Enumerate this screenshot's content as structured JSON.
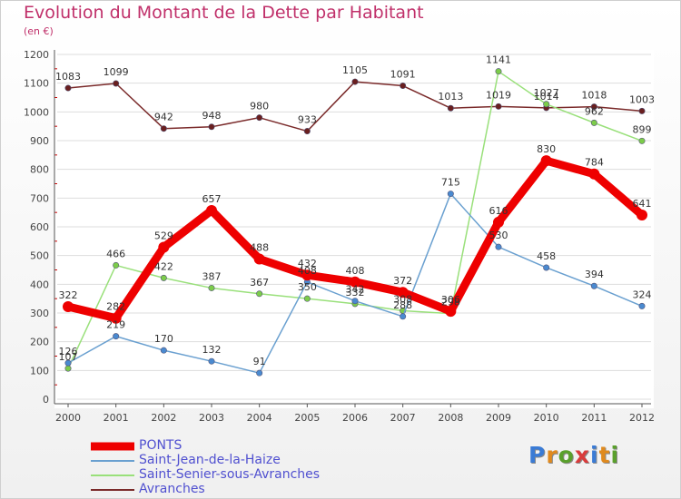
{
  "title": "Evolution du Montant de la Dette par Habitant",
  "subtitle": "(en €)",
  "colors": {
    "title": "#c0306a",
    "axis": "#555555",
    "grid": "#dddddd",
    "legend_text": "#5050d0"
  },
  "logo": {
    "text": "Proxiti",
    "letters": [
      "P",
      "r",
      "o",
      "x",
      "i",
      "t",
      "i"
    ],
    "colors": [
      "#3a7bd5",
      "#e08a1e",
      "#5aa02c",
      "#d93b3b",
      "#3a7bd5",
      "#e08a1e",
      "#5aa02c"
    ]
  },
  "chart_data": {
    "type": "line",
    "title": "Evolution du Montant de la Dette par Habitant",
    "subtitle": "(en €)",
    "xlabel": "",
    "ylabel": "",
    "x": [
      "2000",
      "2001",
      "2002",
      "2003",
      "2004",
      "2005",
      "2006",
      "2007",
      "2008",
      "2009",
      "2010",
      "2011",
      "2012"
    ],
    "ylim": [
      0,
      1200
    ],
    "yticks": [
      0,
      100,
      200,
      300,
      400,
      500,
      600,
      700,
      800,
      900,
      1000,
      1100,
      1200
    ],
    "grid": true,
    "legend_position": "bottom-left",
    "series": [
      {
        "name": "PONTS",
        "color": "#ee0000",
        "marker": "#ee0000",
        "values": [
          322,
          282,
          529,
          657,
          488,
          432,
          408,
          372,
          306,
          616,
          830,
          784,
          641
        ],
        "labels": [
          "322",
          "282",
          "529",
          "657",
          "488",
          "432",
          "408",
          "372",
          "306",
          "616",
          "830",
          "784",
          "641"
        ]
      },
      {
        "name": "Saint-Jean-de-la-Haize",
        "color": "#6aa0d0",
        "marker": "#4a8ad0",
        "values": [
          126,
          219,
          170,
          132,
          91,
          408,
          342,
          288,
          715,
          530,
          458,
          394,
          324
        ],
        "labels": [
          "126",
          "219",
          "170",
          "132",
          "91",
          "408",
          "342",
          "288",
          "715",
          "530",
          "458",
          "394",
          "324"
        ]
      },
      {
        "name": "Saint-Senier-sous-Avranches",
        "color": "#99e07a",
        "marker": "#7ccc4a",
        "values": [
          107,
          466,
          422,
          387,
          367,
          350,
          332,
          308,
          298,
          1141,
          1027,
          962,
          899
        ],
        "labels": [
          "107",
          "466",
          "422",
          "387",
          "367",
          "350",
          "332",
          "308",
          "298",
          "1141",
          "1027",
          "962",
          "899"
        ]
      },
      {
        "name": "Avranches",
        "color": "#7a2a2a",
        "marker": "#6a1f1f",
        "values": [
          1083,
          1099,
          942,
          948,
          980,
          933,
          1105,
          1091,
          1013,
          1019,
          1014,
          1018,
          1003
        ],
        "labels": [
          "1083",
          "1099",
          "942",
          "948",
          "980",
          "933",
          "1105",
          "1091",
          "1013",
          "1019",
          "1014",
          "1018",
          "1003"
        ]
      }
    ]
  }
}
